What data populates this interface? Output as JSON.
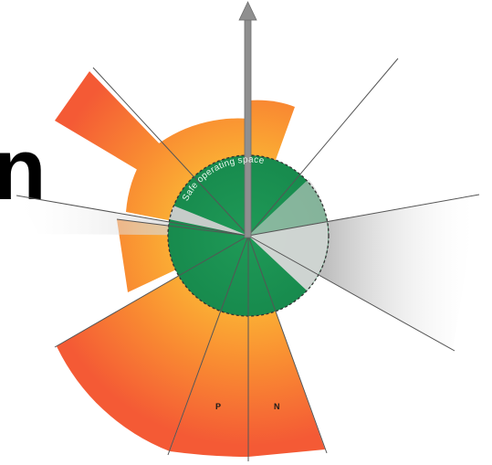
{
  "diagram": {
    "edge_glyph": "n",
    "safe_zone_label": "Safe operating space",
    "segment_labels": [
      "P",
      "N"
    ]
  },
  "colors": {
    "inner_orange": "#fbb034",
    "outer_orange": "#fb5e34",
    "safe_green": "#1f9a57",
    "grey_zone": "#c9c9c9",
    "ray": "#555555"
  }
}
